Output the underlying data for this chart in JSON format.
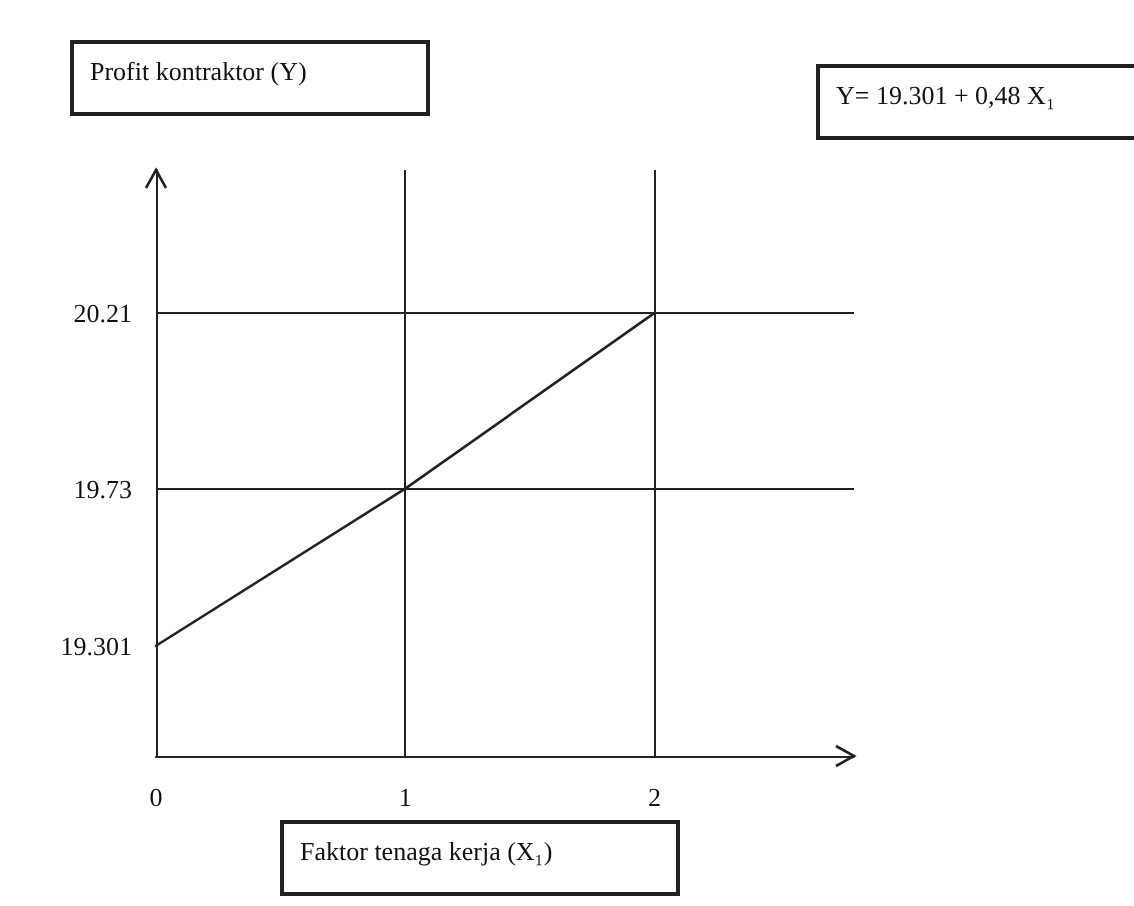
{
  "chart_data": {
    "type": "line",
    "xlabel": "Faktor tenaga kerja (X₁)",
    "ylabel": "Profit kontraktor (Y)",
    "annotations": [
      "Y= 19.301 + 0,48 X₁"
    ],
    "x": [
      0,
      1,
      2
    ],
    "series": [
      {
        "color": "#222222",
        "values": [
          19.301,
          19.73,
          20.21
        ]
      }
    ],
    "xlim": [
      0,
      2.8
    ],
    "xticks": [
      0,
      1,
      2
    ],
    "ylim": [
      19.0,
      20.6
    ],
    "yticks": [
      19.301,
      19.73,
      20.21
    ],
    "ref_lines": [
      {
        "axis": "y",
        "value": 20.21
      },
      {
        "axis": "y",
        "value": 19.73
      },
      {
        "axis": "x",
        "value": 1
      },
      {
        "axis": "x",
        "value": 2
      }
    ],
    "grid": false,
    "marker": "none",
    "line_style": "solid"
  }
}
